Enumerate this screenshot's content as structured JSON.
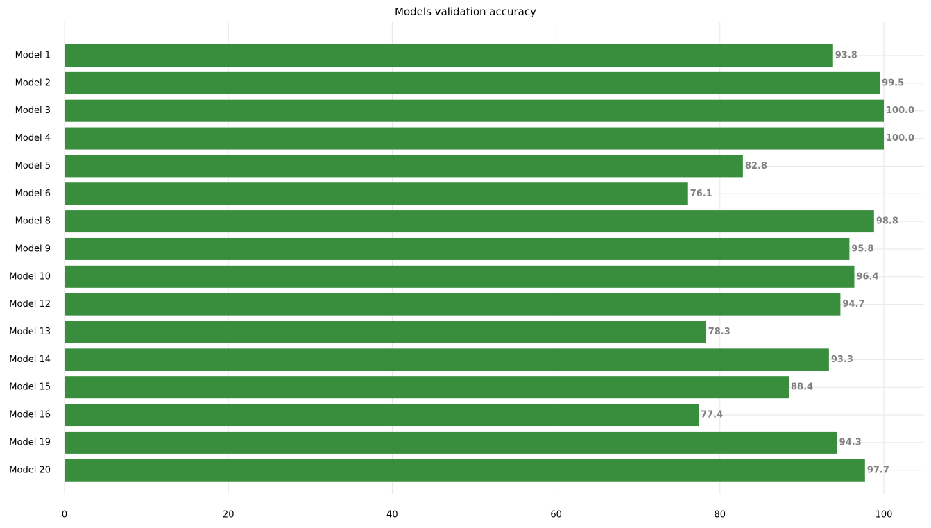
{
  "chart_data": {
    "type": "bar",
    "orientation": "horizontal",
    "title": "Models validation accuracy",
    "xlabel": "",
    "ylabel": "",
    "categories": [
      "Model 1",
      "Model 2",
      "Model 3",
      "Model 4",
      "Model 5",
      "Model 6",
      "Model 8",
      "Model 9",
      "Model 10",
      "Model 12",
      "Model 13",
      "Model 14",
      "Model 15",
      "Model 16",
      "Model 19",
      "Model 20"
    ],
    "values": [
      93.8,
      99.5,
      100.0,
      100.0,
      82.8,
      76.1,
      98.8,
      95.8,
      96.4,
      94.7,
      78.3,
      93.3,
      88.4,
      77.4,
      94.3,
      97.7
    ],
    "value_labels": [
      "93.8",
      "99.5",
      "100.0",
      "100.0",
      "82.8",
      "76.1",
      "98.8",
      "95.8",
      "96.4",
      "94.7",
      "78.3",
      "93.3",
      "88.4",
      "77.4",
      "94.3",
      "97.7"
    ],
    "xticks": [
      0,
      20,
      40,
      60,
      80,
      100
    ],
    "xtick_labels": [
      "0",
      "20",
      "40",
      "60",
      "80",
      "100"
    ],
    "xlim": [
      0,
      105
    ],
    "grid": true,
    "bar_color": "#388e3c",
    "grid_color": "#e6e6e6",
    "value_label_color": "#808080"
  }
}
